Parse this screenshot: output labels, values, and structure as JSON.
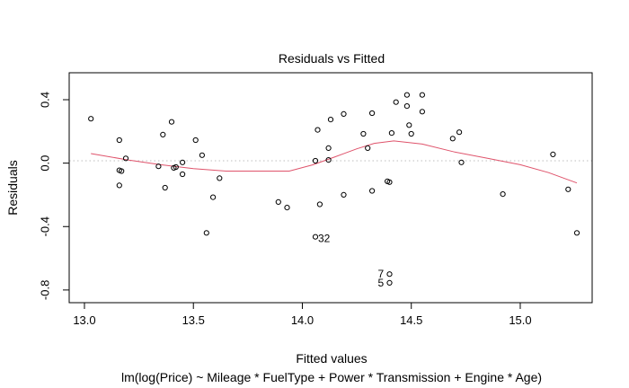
{
  "chart_data": {
    "type": "scatter",
    "title": "Residuals vs Fitted",
    "xlabel": "Fitted values",
    "ylabel": "Residuals",
    "subtitle": "lm(log(Price) ~ Mileage * FuelType + Power * Transmission + Engine * Age)",
    "xlim": [
      12.93,
      15.33
    ],
    "ylim": [
      -0.88,
      0.57
    ],
    "x_ticks": [
      "13.0",
      "13.5",
      "14.0",
      "14.5",
      "15.0"
    ],
    "x_tick_values": [
      13.0,
      13.5,
      14.0,
      14.5,
      15.0
    ],
    "y_ticks": [
      "-0.8",
      "-0.4",
      "0.0",
      "0.4"
    ],
    "y_tick_values": [
      -0.8,
      -0.4,
      0.0,
      0.4
    ],
    "grid": false,
    "reference_line": {
      "y": 0,
      "color": "#bebebe",
      "style": "dotted"
    },
    "points": [
      {
        "x": 13.03,
        "y": 0.28
      },
      {
        "x": 13.16,
        "y": 0.145
      },
      {
        "x": 13.16,
        "y": -0.045
      },
      {
        "x": 13.17,
        "y": -0.05
      },
      {
        "x": 13.16,
        "y": -0.14
      },
      {
        "x": 13.19,
        "y": 0.03
      },
      {
        "x": 13.34,
        "y": -0.02
      },
      {
        "x": 13.36,
        "y": 0.18
      },
      {
        "x": 13.37,
        "y": -0.155
      },
      {
        "x": 13.4,
        "y": 0.26
      },
      {
        "x": 13.41,
        "y": -0.03
      },
      {
        "x": 13.42,
        "y": -0.025
      },
      {
        "x": 13.45,
        "y": 0.005
      },
      {
        "x": 13.45,
        "y": -0.07
      },
      {
        "x": 13.51,
        "y": 0.145
      },
      {
        "x": 13.54,
        "y": 0.05
      },
      {
        "x": 13.56,
        "y": -0.44
      },
      {
        "x": 13.59,
        "y": -0.215
      },
      {
        "x": 13.62,
        "y": -0.095
      },
      {
        "x": 13.89,
        "y": -0.245
      },
      {
        "x": 13.93,
        "y": -0.28
      },
      {
        "x": 14.06,
        "y": -0.465
      },
      {
        "x": 14.06,
        "y": 0.015
      },
      {
        "x": 14.07,
        "y": 0.21
      },
      {
        "x": 14.08,
        "y": -0.26
      },
      {
        "x": 14.12,
        "y": 0.095
      },
      {
        "x": 14.12,
        "y": 0.02
      },
      {
        "x": 14.13,
        "y": 0.275
      },
      {
        "x": 14.19,
        "y": 0.31
      },
      {
        "x": 14.19,
        "y": -0.2
      },
      {
        "x": 14.28,
        "y": 0.185
      },
      {
        "x": 14.3,
        "y": 0.095
      },
      {
        "x": 14.32,
        "y": 0.315
      },
      {
        "x": 14.32,
        "y": -0.175
      },
      {
        "x": 14.39,
        "y": -0.115
      },
      {
        "x": 14.4,
        "y": -0.12
      },
      {
        "x": 14.41,
        "y": 0.19
      },
      {
        "x": 14.43,
        "y": 0.385
      },
      {
        "x": 14.4,
        "y": -0.755
      },
      {
        "x": 14.4,
        "y": -0.7
      },
      {
        "x": 14.48,
        "y": 0.43
      },
      {
        "x": 14.48,
        "y": 0.36
      },
      {
        "x": 14.49,
        "y": 0.24
      },
      {
        "x": 14.5,
        "y": 0.185
      },
      {
        "x": 14.55,
        "y": 0.43
      },
      {
        "x": 14.55,
        "y": 0.325
      },
      {
        "x": 14.69,
        "y": 0.155
      },
      {
        "x": 14.72,
        "y": 0.195
      },
      {
        "x": 14.73,
        "y": 0.005
      },
      {
        "x": 14.92,
        "y": -0.195
      },
      {
        "x": 15.15,
        "y": 0.055
      },
      {
        "x": 15.22,
        "y": -0.165
      },
      {
        "x": 15.26,
        "y": -0.44
      }
    ],
    "smooth_line": {
      "color": "#DF536B",
      "points": [
        {
          "x": 13.03,
          "y": 0.06
        },
        {
          "x": 13.2,
          "y": 0.02
        },
        {
          "x": 13.35,
          "y": -0.01
        },
        {
          "x": 13.5,
          "y": -0.035
        },
        {
          "x": 13.65,
          "y": -0.05
        },
        {
          "x": 13.8,
          "y": -0.05
        },
        {
          "x": 13.94,
          "y": -0.05
        },
        {
          "x": 14.05,
          "y": -0.01
        },
        {
          "x": 14.15,
          "y": 0.04
        },
        {
          "x": 14.25,
          "y": 0.09
        },
        {
          "x": 14.33,
          "y": 0.125
        },
        {
          "x": 14.42,
          "y": 0.14
        },
        {
          "x": 14.55,
          "y": 0.12
        },
        {
          "x": 14.7,
          "y": 0.07
        },
        {
          "x": 14.85,
          "y": 0.03
        },
        {
          "x": 15.0,
          "y": -0.01
        },
        {
          "x": 15.13,
          "y": -0.06
        },
        {
          "x": 15.26,
          "y": -0.125
        }
      ]
    },
    "annotations": [
      {
        "label": "32",
        "x": 14.06,
        "y": -0.465
      },
      {
        "label": "7",
        "x": 14.4,
        "y": -0.7
      },
      {
        "label": "5",
        "x": 14.4,
        "y": -0.755
      }
    ]
  }
}
